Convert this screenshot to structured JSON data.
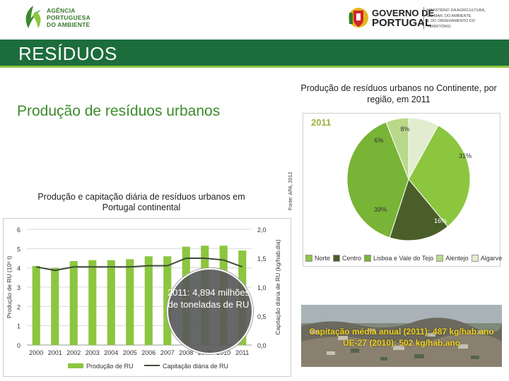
{
  "header": {
    "apa_logo_lines": [
      "AGÊNCIA",
      "PORTUGUESA",
      "DO AMBIENTE"
    ],
    "gov_logo_lines": [
      "GOVERNO DE",
      "PORTUGAL"
    ],
    "ministry_lines": [
      "MINISTÉRIO DA AGRICULTURA,",
      "DO MAR, DO AMBIENTE",
      "E DO ORDENAMENTO DO TERRITÓRIO"
    ]
  },
  "slide": {
    "title": "RESÍDUOS",
    "section_title": "Produção de resíduos urbanos"
  },
  "colors": {
    "title_bar": "#1d6d3c",
    "bar_green": "#8cc63f",
    "line_dark": "#3f4a3a"
  },
  "chart_data": [
    {
      "type": "bar",
      "title": "Produção e capitação diária de resíduos urbanos em Portugal continental",
      "categories": [
        "2000",
        "2001",
        "2002",
        "2003",
        "2004",
        "2005",
        "2006",
        "2007",
        "2008",
        "2009",
        "2010",
        "2011"
      ],
      "series": [
        {
          "name": "Produção de RU",
          "axis": "left",
          "kind": "bar",
          "values": [
            4.1,
            4.0,
            4.35,
            4.4,
            4.4,
            4.45,
            4.6,
            4.6,
            5.1,
            5.15,
            5.15,
            4.9
          ]
        },
        {
          "name": "Capitação diária de RU",
          "axis": "right",
          "kind": "line",
          "values": [
            1.35,
            1.29,
            1.35,
            1.35,
            1.35,
            1.35,
            1.37,
            1.37,
            1.5,
            1.5,
            1.47,
            1.35
          ]
        }
      ],
      "ylabel": "Produção de RU (10⁶ t)",
      "y2label": "Capitação diária de RU (kg/hab.dia)",
      "ylim": [
        0,
        6
      ],
      "yticks": [
        "0",
        "1",
        "2",
        "3",
        "4",
        "5",
        "6"
      ],
      "y2lim": [
        0,
        2
      ],
      "y2ticks": [
        "0,0",
        "0,5",
        "1,0",
        "1,5",
        "2,0"
      ],
      "grid": true,
      "legend": "bottom",
      "annotation": "2011: 4,894 milhões de toneladas de RU"
    },
    {
      "type": "pie",
      "title": "Produção de resíduos urbanos no Continente, por região, em 2011",
      "subtitle": "2011",
      "slices": [
        {
          "label": "Norte",
          "value": 31,
          "display": "31%",
          "color": "#8cc63f"
        },
        {
          "label": "Centro",
          "value": 16,
          "display": "16%",
          "color": "#4a5e2a"
        },
        {
          "label": "Lisboa e Vale do Tejo",
          "value": 39,
          "display": "39%",
          "color": "#78b436"
        },
        {
          "label": "Alentejo",
          "value": 6,
          "display": "6%",
          "color": "#b9d98a"
        },
        {
          "label": "Algarve",
          "value": 8,
          "display": "8%",
          "color": "#e2edcf"
        }
      ],
      "legend": "bottom"
    }
  ],
  "source_note": "Fonte: APA, 2012",
  "photo_caption": {
    "line1": "Capitação média anual (2011): 487 kg/hab.ano",
    "line2": "UE-27 (2010): 502 kg/hab.ano"
  }
}
